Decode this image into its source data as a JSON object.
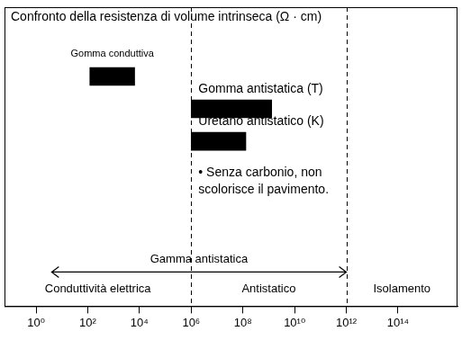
{
  "chart_data": {
    "type": "bar",
    "orientation": "horizontal",
    "title": "Confronto della resistenza di volume intrinseca (Ω · cm)",
    "categories": [
      "Gomma conduttiva",
      "Gomma antistatica (T)",
      "Uretano antistatico (K)"
    ],
    "values": [
      [
        120,
        6500
      ],
      [
        1000000,
        1300000000
      ],
      [
        1000000,
        130000000
      ]
    ],
    "color": "#000000",
    "log": "x",
    "xlim": [
      0.06,
      20000000000000000
    ],
    "xticks": [
      {
        "value": 1,
        "label": "10⁰"
      },
      {
        "value": 100,
        "label": "10²"
      },
      {
        "value": 10000,
        "label": "10⁴"
      },
      {
        "value": 1000000,
        "label": "10⁶"
      },
      {
        "value": 100000000,
        "label": "10⁸"
      },
      {
        "value": 10000000000,
        "label": "10¹⁰"
      },
      {
        "value": 1000000000000,
        "label": "10¹²"
      },
      {
        "value": 100000000000000,
        "label": "10¹⁴"
      }
    ],
    "tick_labels": "x",
    "grid": false,
    "note": "• Senza carbonio, non scolorisce il pavimento.",
    "vlines": [
      1000000,
      1000000000000
    ],
    "range_arrow": {
      "label": "Gamma antistatica",
      "from": 4,
      "to": 1000000000000
    },
    "zones": [
      {
        "label": "Conduttività elettrica",
        "from": 0.06,
        "to": 1000000
      },
      {
        "label": "Antistatico",
        "from": 1000000,
        "to": 1000000000000
      },
      {
        "label": "Isolamento",
        "from": 1000000000000,
        "to": 20000000000000000
      }
    ]
  }
}
